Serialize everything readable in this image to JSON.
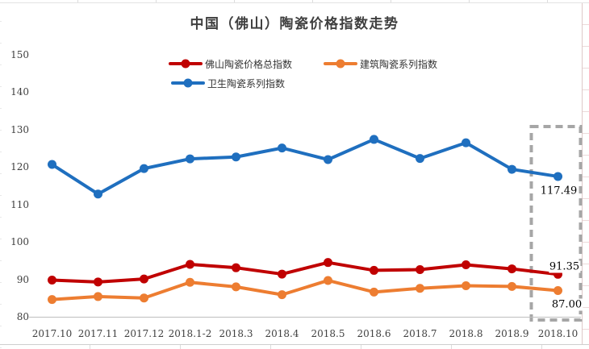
{
  "title": "中国（佛山）陶瓷价格指数走势",
  "chart_data": {
    "type": "line",
    "title": "中国（佛山）陶瓷价格指数走势",
    "categories": [
      "2017.10",
      "2017.11",
      "2017.12",
      "2018.1-2",
      "2018.3",
      "2018.4",
      "2018.5",
      "2018.6",
      "2018.7",
      "2018.8",
      "2018.9",
      "2018.10"
    ],
    "series": [
      {
        "name": "佛山陶瓷价格总指数",
        "color": "#C00000",
        "values": [
          89.8,
          89.3,
          90.1,
          94.0,
          93.1,
          91.4,
          94.5,
          92.4,
          92.6,
          93.9,
          92.8,
          91.35
        ],
        "end_label": "91.35"
      },
      {
        "name": "建筑陶瓷系列指数",
        "color": "#ED7D31",
        "values": [
          84.6,
          85.4,
          85.0,
          89.2,
          88.0,
          85.9,
          89.7,
          86.6,
          87.6,
          88.3,
          88.1,
          87.0
        ],
        "end_label": "87.00"
      },
      {
        "name": "卫生陶瓷系列指数",
        "color": "#1F6FBF",
        "values": [
          120.7,
          112.8,
          119.6,
          122.2,
          122.7,
          125.1,
          122.0,
          127.4,
          122.3,
          126.5,
          119.4,
          117.49
        ],
        "end_label": "117.49"
      }
    ],
    "ylim": [
      80,
      150
    ],
    "yticks": [
      80,
      90,
      100,
      110,
      120,
      130,
      140,
      150
    ],
    "grid": false,
    "legend_position": "top",
    "annotations": {
      "highlighted_category": "2018.10",
      "highlight_style": "gray-dashed-box"
    }
  }
}
